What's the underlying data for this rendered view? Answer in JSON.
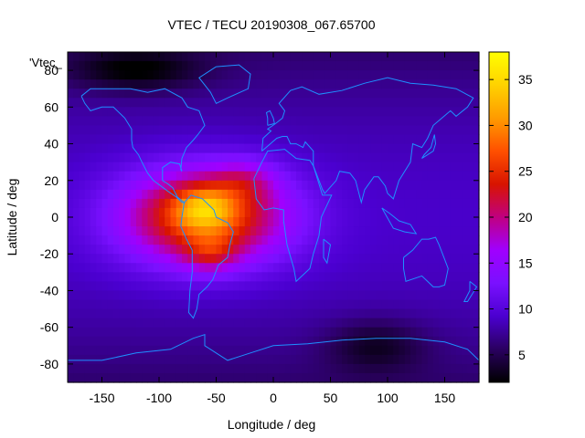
{
  "chart_data": {
    "type": "heatmap",
    "title": "VTEC / TECU 20190308_067.65700",
    "xlabel": "Longitude / deg",
    "ylabel": "Latitude / deg",
    "legend_label": "'Vtec_",
    "xlim": [
      -180,
      180
    ],
    "ylim": [
      -90,
      90
    ],
    "x_ticks": [
      -150,
      -100,
      -50,
      0,
      50,
      100,
      150
    ],
    "y_ticks": [
      -80,
      -60,
      -40,
      -20,
      0,
      20,
      40,
      60,
      80
    ],
    "colorbar": {
      "range": [
        2,
        38
      ],
      "ticks": [
        5,
        10,
        15,
        20,
        25,
        30,
        35
      ],
      "colors": [
        "#000000",
        "#2a0060",
        "#4b00d0",
        "#7a10ff",
        "#a000ff",
        "#c00080",
        "#d81400",
        "#ff5000",
        "#ff9b00",
        "#ffd200",
        "#ffff00"
      ]
    },
    "grid": {
      "lon_step": 5,
      "lat_step": 5,
      "description_free": true,
      "features": [
        {
          "lon": -60,
          "lat": 0,
          "amp": 19,
          "slon": 50,
          "slat": 18
        },
        {
          "lon": -60,
          "lat": 5,
          "amp": 8,
          "slon": 18,
          "slat": 8
        },
        {
          "lon": -55,
          "lat": -20,
          "amp": 6,
          "slon": 16,
          "slat": 7
        },
        {
          "lon": -25,
          "lat": 20,
          "amp": 5,
          "slon": 20,
          "slat": 8
        },
        {
          "lon": 90,
          "lat": -70,
          "amp": -4,
          "slon": 30,
          "slat": 10
        },
        {
          "lon": -120,
          "lat": 80,
          "amp": -5,
          "slon": 40,
          "slat": 8
        }
      ],
      "base": 9,
      "polar_drop": 3
    },
    "coastlines": [
      {
        "name": "north-america",
        "points": [
          [
            -168,
            66
          ],
          [
            -160,
            70
          ],
          [
            -140,
            70
          ],
          [
            -125,
            70
          ],
          [
            -110,
            68
          ],
          [
            -95,
            70
          ],
          [
            -80,
            65
          ],
          [
            -75,
            60
          ],
          [
            -65,
            58
          ],
          [
            -60,
            50
          ],
          [
            -66,
            45
          ],
          [
            -70,
            42
          ],
          [
            -76,
            38
          ],
          [
            -80,
            32
          ],
          [
            -81,
            26
          ],
          [
            -80,
            25
          ],
          [
            -82,
            29
          ],
          [
            -90,
            30
          ],
          [
            -97,
            27
          ],
          [
            -97,
            20
          ],
          [
            -92,
            18
          ],
          [
            -88,
            16
          ],
          [
            -84,
            11
          ],
          [
            -80,
            9
          ],
          [
            -78,
            8
          ],
          [
            -80,
            8
          ],
          [
            -85,
            11
          ],
          [
            -92,
            14
          ],
          [
            -105,
            20
          ],
          [
            -110,
            24
          ],
          [
            -115,
            30
          ],
          [
            -118,
            34
          ],
          [
            -123,
            38
          ],
          [
            -124,
            42
          ],
          [
            -124,
            48
          ],
          [
            -130,
            54
          ],
          [
            -140,
            60
          ],
          [
            -150,
            60
          ],
          [
            -160,
            58
          ],
          [
            -165,
            62
          ],
          [
            -168,
            66
          ]
        ]
      },
      {
        "name": "south-america",
        "points": [
          [
            -78,
            8
          ],
          [
            -72,
            12
          ],
          [
            -62,
            10
          ],
          [
            -52,
            4
          ],
          [
            -50,
            0
          ],
          [
            -40,
            -3
          ],
          [
            -35,
            -8
          ],
          [
            -38,
            -15
          ],
          [
            -40,
            -22
          ],
          [
            -48,
            -26
          ],
          [
            -53,
            -34
          ],
          [
            -58,
            -38
          ],
          [
            -65,
            -42
          ],
          [
            -67,
            -50
          ],
          [
            -70,
            -55
          ],
          [
            -74,
            -52
          ],
          [
            -73,
            -40
          ],
          [
            -71,
            -30
          ],
          [
            -71,
            -18
          ],
          [
            -76,
            -12
          ],
          [
            -81,
            -5
          ],
          [
            -80,
            0
          ],
          [
            -78,
            8
          ]
        ]
      },
      {
        "name": "greenland",
        "points": [
          [
            -50,
            82
          ],
          [
            -30,
            83
          ],
          [
            -20,
            78
          ],
          [
            -22,
            70
          ],
          [
            -40,
            65
          ],
          [
            -50,
            62
          ],
          [
            -55,
            68
          ],
          [
            -65,
            76
          ],
          [
            -50,
            82
          ]
        ]
      },
      {
        "name": "africa",
        "points": [
          [
            -17,
            21
          ],
          [
            -10,
            30
          ],
          [
            -5,
            36
          ],
          [
            10,
            37
          ],
          [
            20,
            32
          ],
          [
            32,
            31
          ],
          [
            35,
            28
          ],
          [
            43,
            12
          ],
          [
            51,
            12
          ],
          [
            42,
            0
          ],
          [
            40,
            -10
          ],
          [
            35,
            -20
          ],
          [
            32,
            -28
          ],
          [
            20,
            -35
          ],
          [
            18,
            -28
          ],
          [
            12,
            -15
          ],
          [
            9,
            -2
          ],
          [
            9,
            4
          ],
          [
            0,
            5
          ],
          [
            -8,
            4
          ],
          [
            -15,
            10
          ],
          [
            -17,
            21
          ]
        ]
      },
      {
        "name": "eurasia",
        "points": [
          [
            -10,
            36
          ],
          [
            -9,
            43
          ],
          [
            -2,
            47
          ],
          [
            -5,
            48
          ],
          [
            2,
            51
          ],
          [
            8,
            54
          ],
          [
            10,
            58
          ],
          [
            5,
            62
          ],
          [
            15,
            69
          ],
          [
            25,
            71
          ],
          [
            40,
            67
          ],
          [
            60,
            69
          ],
          [
            80,
            73
          ],
          [
            100,
            76
          ],
          [
            120,
            73
          ],
          [
            140,
            72
          ],
          [
            160,
            70
          ],
          [
            175,
            65
          ],
          [
            170,
            60
          ],
          [
            160,
            55
          ],
          [
            155,
            58
          ],
          [
            140,
            50
          ],
          [
            135,
            43
          ],
          [
            130,
            38
          ],
          [
            122,
            40
          ],
          [
            120,
            30
          ],
          [
            110,
            20
          ],
          [
            105,
            10
          ],
          [
            100,
            13
          ],
          [
            98,
            17
          ],
          [
            92,
            22
          ],
          [
            88,
            22
          ],
          [
            80,
            15
          ],
          [
            77,
            8
          ],
          [
            72,
            20
          ],
          [
            67,
            24
          ],
          [
            58,
            25
          ],
          [
            55,
            20
          ],
          [
            45,
            13
          ],
          [
            43,
            15
          ],
          [
            35,
            28
          ],
          [
            35,
            36
          ],
          [
            28,
            41
          ],
          [
            26,
            38
          ],
          [
            20,
            40
          ],
          [
            15,
            40
          ],
          [
            12,
            44
          ],
          [
            8,
            44
          ],
          [
            3,
            43
          ],
          [
            -10,
            36
          ]
        ]
      },
      {
        "name": "australia",
        "points": [
          [
            114,
            -22
          ],
          [
            122,
            -18
          ],
          [
            130,
            -12
          ],
          [
            136,
            -12
          ],
          [
            142,
            -11
          ],
          [
            145,
            -15
          ],
          [
            150,
            -23
          ],
          [
            153,
            -28
          ],
          [
            150,
            -37
          ],
          [
            145,
            -38
          ],
          [
            140,
            -38
          ],
          [
            135,
            -35
          ],
          [
            130,
            -32
          ],
          [
            116,
            -35
          ],
          [
            114,
            -28
          ],
          [
            114,
            -22
          ]
        ]
      },
      {
        "name": "antarctica",
        "points": [
          [
            -180,
            -78
          ],
          [
            -150,
            -78
          ],
          [
            -120,
            -74
          ],
          [
            -90,
            -72
          ],
          [
            -70,
            -66
          ],
          [
            -60,
            -64
          ],
          [
            -60,
            -70
          ],
          [
            -40,
            -78
          ],
          [
            -20,
            -74
          ],
          [
            0,
            -70
          ],
          [
            30,
            -69
          ],
          [
            60,
            -67
          ],
          [
            90,
            -66
          ],
          [
            120,
            -66
          ],
          [
            150,
            -68
          ],
          [
            170,
            -72
          ],
          [
            180,
            -78
          ]
        ]
      },
      {
        "name": "uk",
        "points": [
          [
            -5,
            50
          ],
          [
            1,
            51
          ],
          [
            0,
            54
          ],
          [
            -3,
            58
          ],
          [
            -6,
            57
          ],
          [
            -5,
            54
          ],
          [
            -5,
            50
          ]
        ]
      },
      {
        "name": "madagascar",
        "points": [
          [
            44,
            -12
          ],
          [
            50,
            -15
          ],
          [
            47,
            -25
          ],
          [
            44,
            -22
          ],
          [
            44,
            -12
          ]
        ]
      },
      {
        "name": "japan",
        "points": [
          [
            130,
            32
          ],
          [
            135,
            34
          ],
          [
            140,
            36
          ],
          [
            142,
            40
          ],
          [
            141,
            45
          ],
          [
            138,
            38
          ],
          [
            132,
            34
          ],
          [
            130,
            32
          ]
        ]
      },
      {
        "name": "new-zealand",
        "points": [
          [
            172,
            -35
          ],
          [
            178,
            -38
          ],
          [
            174,
            -42
          ],
          [
            170,
            -46
          ],
          [
            167,
            -46
          ],
          [
            172,
            -40
          ],
          [
            172,
            -35
          ]
        ]
      },
      {
        "name": "indonesia",
        "points": [
          [
            95,
            5
          ],
          [
            105,
            -6
          ],
          [
            115,
            -8
          ],
          [
            125,
            -9
          ],
          [
            120,
            -4
          ],
          [
            110,
            -2
          ],
          [
            102,
            2
          ],
          [
            95,
            5
          ]
        ]
      }
    ]
  }
}
